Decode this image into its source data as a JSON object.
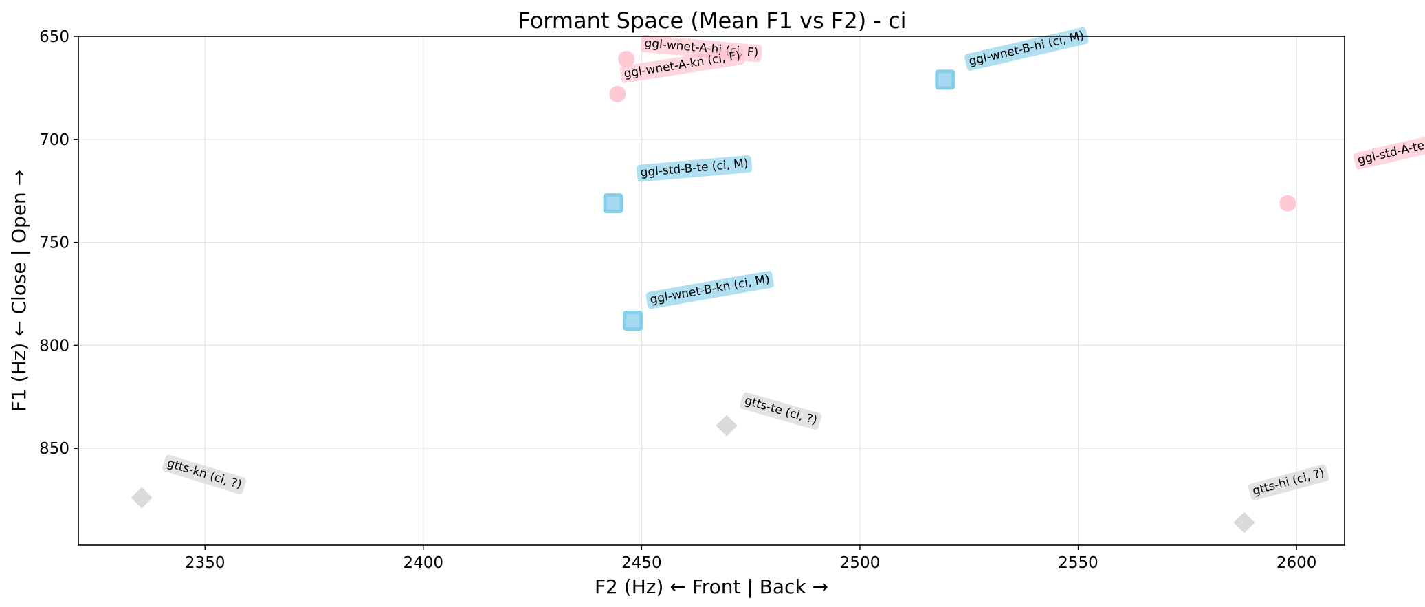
{
  "chart_data": {
    "type": "scatter",
    "title": "Formant Space (Mean F1 vs F2) - ci",
    "xlabel": "F2 (Hz) ← Front | Back →",
    "ylabel": "F1 (Hz) ← Close | Open →",
    "xlim": [
      2321,
      2611
    ],
    "ylim": [
      897,
      650
    ],
    "y_inverted": true,
    "xticks": [
      2350,
      2400,
      2450,
      2500,
      2550,
      2600
    ],
    "yticks": [
      650,
      700,
      750,
      800,
      850
    ],
    "grid": true,
    "legend": "none",
    "points": [
      {
        "label": "ggl-wnet-A-hi (ci, F)",
        "x": 2446.5,
        "y": 661,
        "marker": "circle",
        "color": "#ffc0cb"
      },
      {
        "label": "ggl-wnet-A-kn (ci, F)",
        "x": 2444.5,
        "y": 678,
        "marker": "circle",
        "color": "#ffc0cb"
      },
      {
        "label": "ggl-std-A-te (ci, F)",
        "x": 2598,
        "y": 731,
        "marker": "circle",
        "color": "#ffc0cb"
      },
      {
        "label": "ggl-wnet-B-hi (ci, M)",
        "x": 2519.5,
        "y": 671,
        "marker": "square",
        "color": "#87ceeb"
      },
      {
        "label": "ggl-std-B-te (ci, M)",
        "x": 2443.5,
        "y": 731,
        "marker": "square",
        "color": "#87ceeb"
      },
      {
        "label": "ggl-wnet-B-kn (ci, M)",
        "x": 2448,
        "y": 788,
        "marker": "square",
        "color": "#87ceeb"
      },
      {
        "label": "gtts-te (ci, ?)",
        "x": 2469.5,
        "y": 839,
        "marker": "diamond",
        "color": "#d3d3d3"
      },
      {
        "label": "gtts-kn (ci, ?)",
        "x": 2335.5,
        "y": 874,
        "marker": "diamond",
        "color": "#d3d3d3"
      },
      {
        "label": "gtts-hi (ci, ?)",
        "x": 2588,
        "y": 886,
        "marker": "diamond",
        "color": "#d3d3d3"
      }
    ]
  }
}
